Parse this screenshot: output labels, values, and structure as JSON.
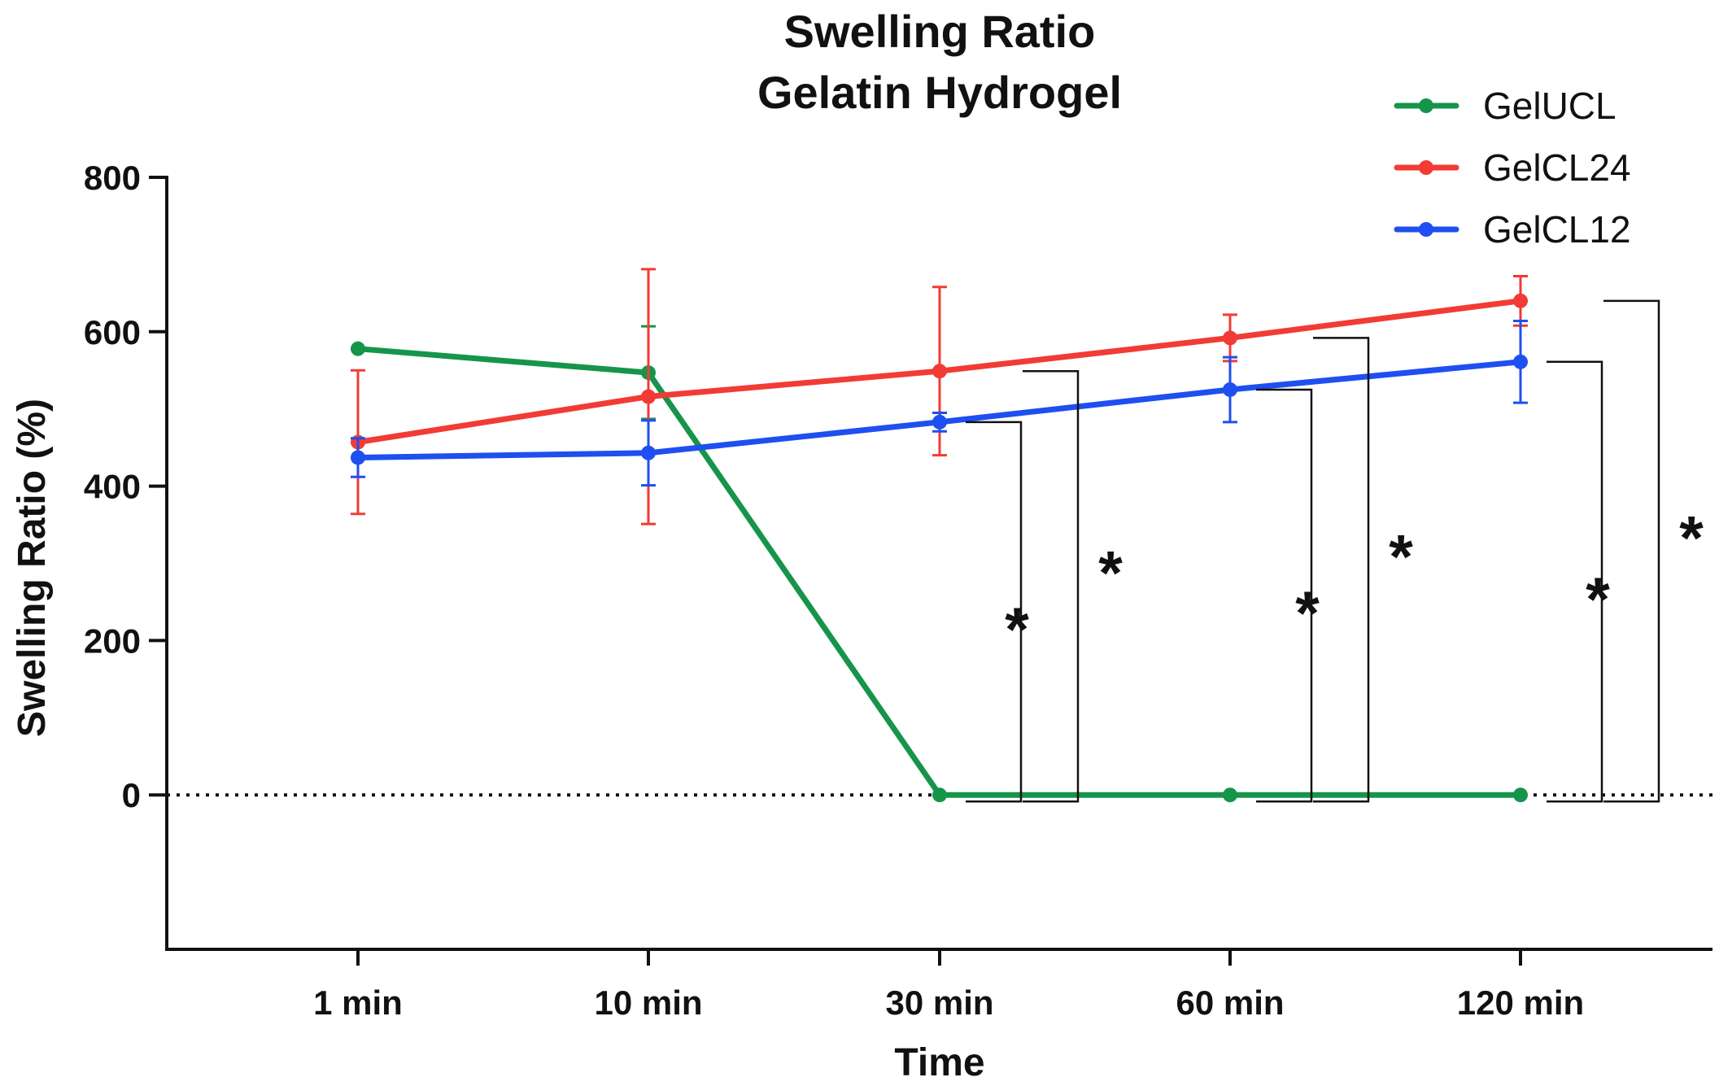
{
  "chart_data": {
    "type": "line",
    "title": [
      "Swelling Ratio",
      "Gelatin Hydrogel"
    ],
    "xlabel": "Time",
    "ylabel": "Swelling Ratio (%)",
    "categories": [
      "1 min",
      "10 min",
      "30 min",
      "60 min",
      "120 min"
    ],
    "ylim": [
      -200,
      800
    ],
    "yticks": [
      0,
      200,
      400,
      600,
      800
    ],
    "reference_line": {
      "y": 0,
      "style": "dotted"
    },
    "series": [
      {
        "name": "GelUCL",
        "color": "#16954a",
        "values": [
          578,
          547,
          0,
          0,
          0
        ],
        "errors": [
          0,
          60,
          0,
          0,
          0
        ]
      },
      {
        "name": "GelCL24",
        "color": "#f23b35",
        "values": [
          457,
          516,
          549,
          592,
          640
        ],
        "errors": [
          93,
          165,
          109,
          30,
          32
        ]
      },
      {
        "name": "GelCL12",
        "color": "#1f4ff0",
        "values": [
          437,
          443,
          483,
          525,
          561
        ],
        "errors": [
          25,
          42,
          12,
          42,
          53
        ]
      }
    ],
    "significance": [
      {
        "category": "30 min",
        "pairs": [
          {
            "from": "GelUCL",
            "to": "GelCL12",
            "label": "*"
          },
          {
            "from": "GelUCL",
            "to": "GelCL24",
            "label": "*"
          }
        ]
      },
      {
        "category": "60 min",
        "pairs": [
          {
            "from": "GelUCL",
            "to": "GelCL12",
            "label": "*"
          },
          {
            "from": "GelUCL",
            "to": "GelCL24",
            "label": "*"
          }
        ]
      },
      {
        "category": "120 min",
        "pairs": [
          {
            "from": "GelUCL",
            "to": "GelCL12",
            "label": "*"
          },
          {
            "from": "GelUCL",
            "to": "GelCL24",
            "label": "*"
          }
        ]
      }
    ],
    "legend_position": "top-right"
  }
}
